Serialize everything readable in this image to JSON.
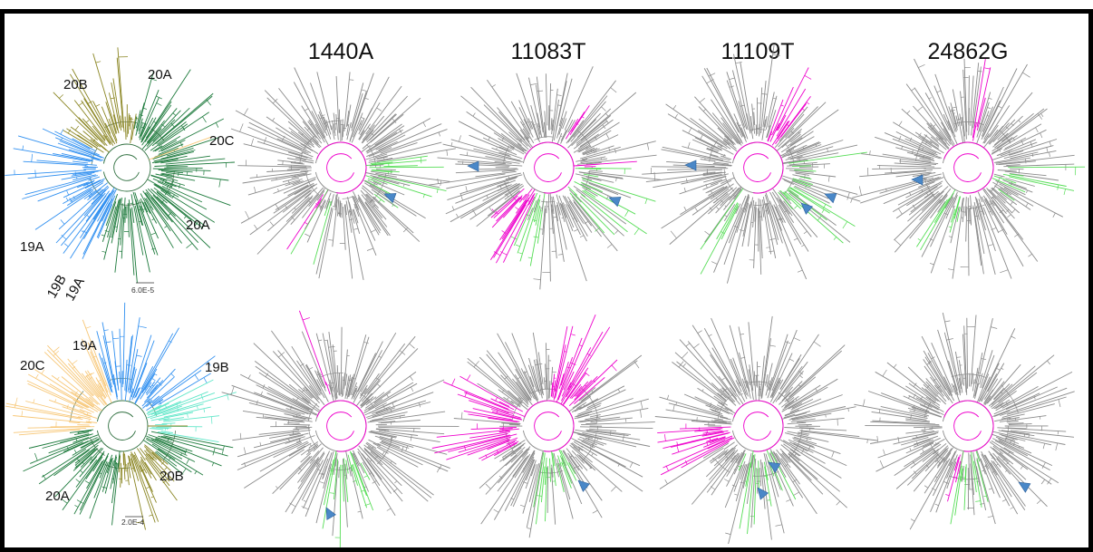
{
  "headers": [
    "1440A",
    "11083T",
    "11109T",
    "24862G"
  ],
  "colors": {
    "frame": "#000000",
    "branch_gray": "#8a8a8a",
    "highlight_magenta": "#ee00cc",
    "highlight_green": "#55dd55",
    "marker_blue": "#4a88c8",
    "clade_20A": "#1d7a3c",
    "clade_20B": "#8a8522",
    "clade_20C": "#f7c777",
    "clade_19A": "#2f8ff0",
    "clade_19B": "#5fe6c8"
  },
  "top_row": {
    "scale_bar": "6.0E-5",
    "clade_labels": [
      "20B",
      "20A",
      "20C",
      "20A",
      "19A",
      "19B",
      "19A"
    ]
  },
  "bottom_row": {
    "scale_bar": "2.0E-4",
    "clade_labels": [
      "19A",
      "20C",
      "19B",
      "20A",
      "20B"
    ]
  }
}
